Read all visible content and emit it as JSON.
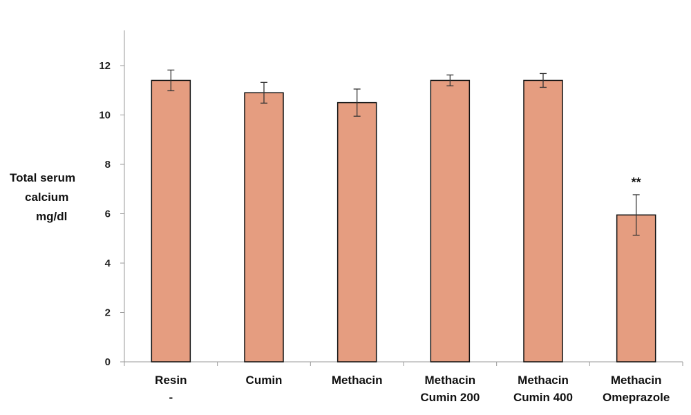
{
  "chart_data": {
    "type": "bar",
    "ylabel_lines": [
      "Total  serum",
      "calcium",
      "mg/dl"
    ],
    "xlabel": "",
    "ylim": [
      0,
      13
    ],
    "yticks": [
      0,
      2,
      4,
      6,
      8,
      10,
      12
    ],
    "categories": [
      [
        "Resin",
        "-"
      ],
      [
        "Cumin"
      ],
      [
        "Methacin"
      ],
      [
        "Methacin",
        "Cumin 200"
      ],
      [
        "Methacin",
        "Cumin 400"
      ],
      [
        "Methacin",
        "Omeprazole"
      ]
    ],
    "values": [
      11.4,
      10.9,
      10.5,
      11.4,
      11.4,
      5.95
    ],
    "error": [
      0.42,
      0.42,
      0.55,
      0.22,
      0.28,
      0.82
    ],
    "annotations": [
      "",
      "",
      "",
      "",
      "",
      "**"
    ],
    "bar_color": "#e59d80",
    "bar_edge_color": "#111111",
    "legend": "none",
    "grid": false
  }
}
